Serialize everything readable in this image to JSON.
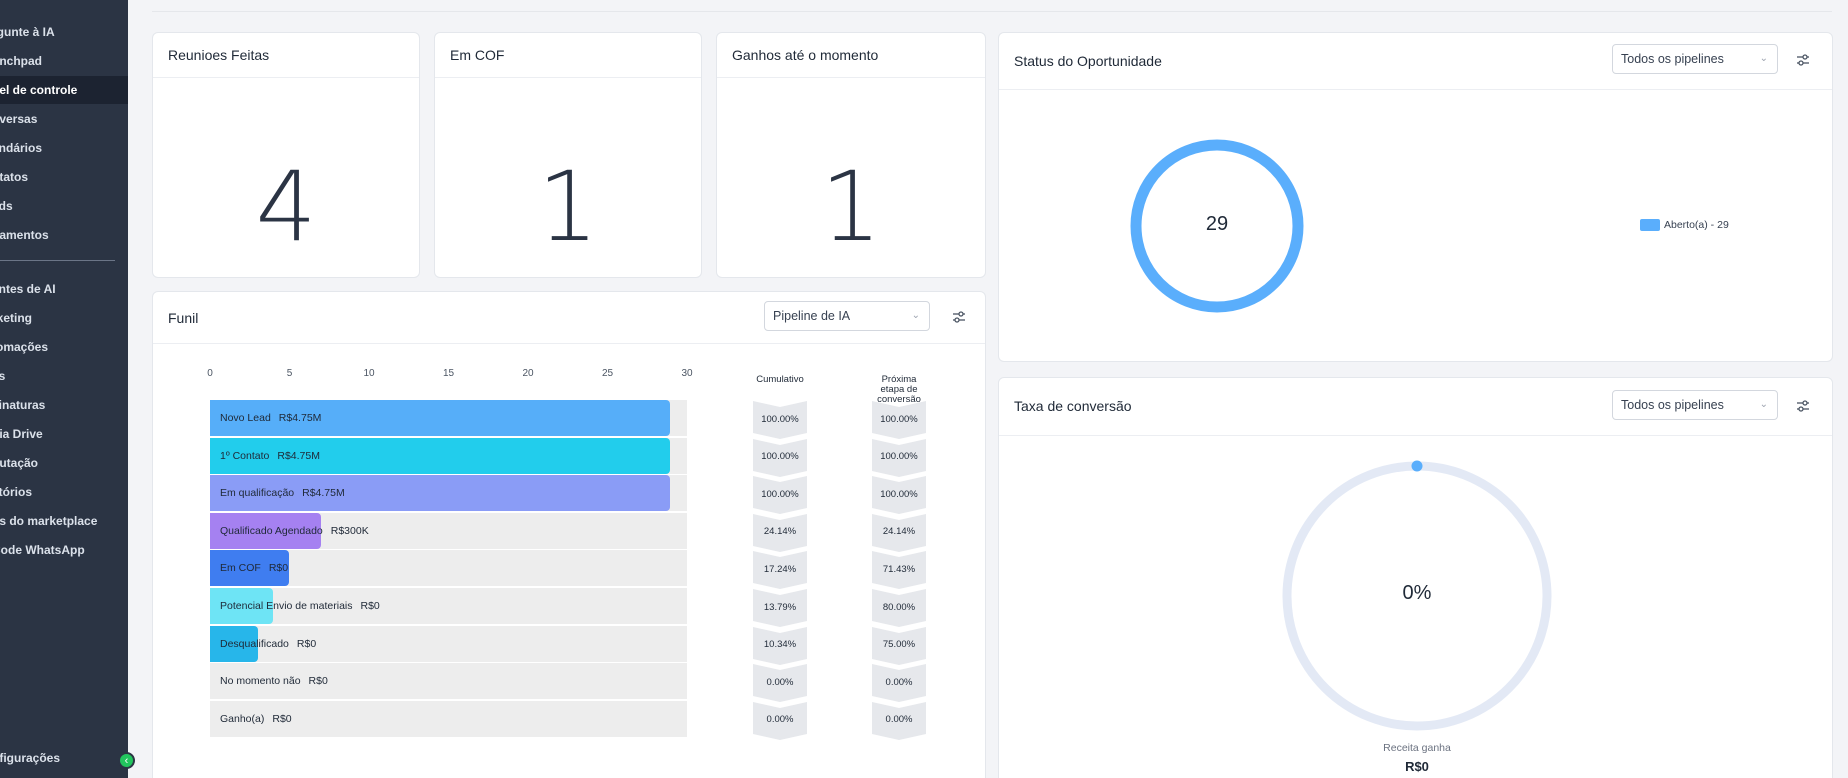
{
  "sidebar": {
    "items": [
      {
        "label": "rgunte à IA"
      },
      {
        "label": "unchpad"
      },
      {
        "label": "nel de controle",
        "active": true
      },
      {
        "label": "nversas"
      },
      {
        "label": "endários"
      },
      {
        "label": "ntatos"
      },
      {
        "label": "ads"
      },
      {
        "label": "gamentos"
      },
      {
        "label": "entes de AI"
      },
      {
        "label": "rketing"
      },
      {
        "label": "tomações"
      },
      {
        "label": "es"
      },
      {
        "label": "sinaturas"
      },
      {
        "label": "dia Drive"
      },
      {
        "label": "putação"
      },
      {
        "label": "atórios"
      },
      {
        "label": "os do marketplace"
      },
      {
        "label": "Code WhatsApp"
      }
    ],
    "settings_label": "nfigurações"
  },
  "stats": [
    {
      "title": "Reunioes Feitas",
      "value": "4"
    },
    {
      "title": "Em COF",
      "value": "1"
    },
    {
      "title": "Ganhos até o momento",
      "value": "1"
    }
  ],
  "funnel": {
    "title": "Funil",
    "pipeline_select": "Pipeline de IA",
    "col_cumulative": "Cumulativo",
    "col_next": "Próxima etapa de conversão"
  },
  "opportunity_status": {
    "title": "Status do Oportunidade",
    "pipelines_select": "Todos os pipelines",
    "total": "29",
    "legend": "Aberto(a) - 29"
  },
  "conversion": {
    "title": "Taxa de conversão",
    "pipelines_select": "Todos os pipelines",
    "rate": "0%",
    "revenue_label": "Receita ganha",
    "revenue_value": "R$0"
  },
  "colors": {
    "sidebar_bg": "#2b3444",
    "donut": "#5aaefc",
    "gauge_track": "#e3e9f5"
  },
  "chart_data": {
    "type": "bar",
    "orientation": "horizontal",
    "xlim": [
      0,
      30
    ],
    "x_ticks": [
      "0",
      "5",
      "10",
      "15",
      "20",
      "25",
      "30"
    ],
    "categories": [
      {
        "stage": "Novo Lead",
        "amount": "R$4.75M",
        "value": 29,
        "cumulative": "100.00%",
        "next": "100.00%",
        "color": "#56aef9"
      },
      {
        "stage": "1º Contato",
        "amount": "R$4.75M",
        "value": 29,
        "cumulative": "100.00%",
        "next": "100.00%",
        "color": "#22cdec"
      },
      {
        "stage": "Em qualificação",
        "amount": "R$4.75M",
        "value": 29,
        "cumulative": "100.00%",
        "next": "100.00%",
        "color": "#8a9cf6"
      },
      {
        "stage": "Qualificado Agendado",
        "amount": "R$300K",
        "value": 7,
        "cumulative": "24.14%",
        "next": "24.14%",
        "color": "#a581f1"
      },
      {
        "stage": "Em COF",
        "amount": "R$0",
        "value": 5,
        "cumulative": "17.24%",
        "next": "71.43%",
        "color": "#3f7df0"
      },
      {
        "stage": "Potencial Envio de materiais",
        "amount": "R$0",
        "value": 4,
        "cumulative": "13.79%",
        "next": "80.00%",
        "color": "#6ee4f5"
      },
      {
        "stage": "Desqualificado",
        "amount": "R$0",
        "value": 3,
        "cumulative": "10.34%",
        "next": "75.00%",
        "color": "#27b6ea"
      },
      {
        "stage": "No momento não",
        "amount": "R$0",
        "value": 0,
        "cumulative": "0.00%",
        "next": "0.00%",
        "color": "#ededed"
      },
      {
        "stage": "Ganho(a)",
        "amount": "R$0",
        "value": 0,
        "cumulative": "0.00%",
        "next": "0.00%",
        "color": "#ededed"
      }
    ]
  }
}
